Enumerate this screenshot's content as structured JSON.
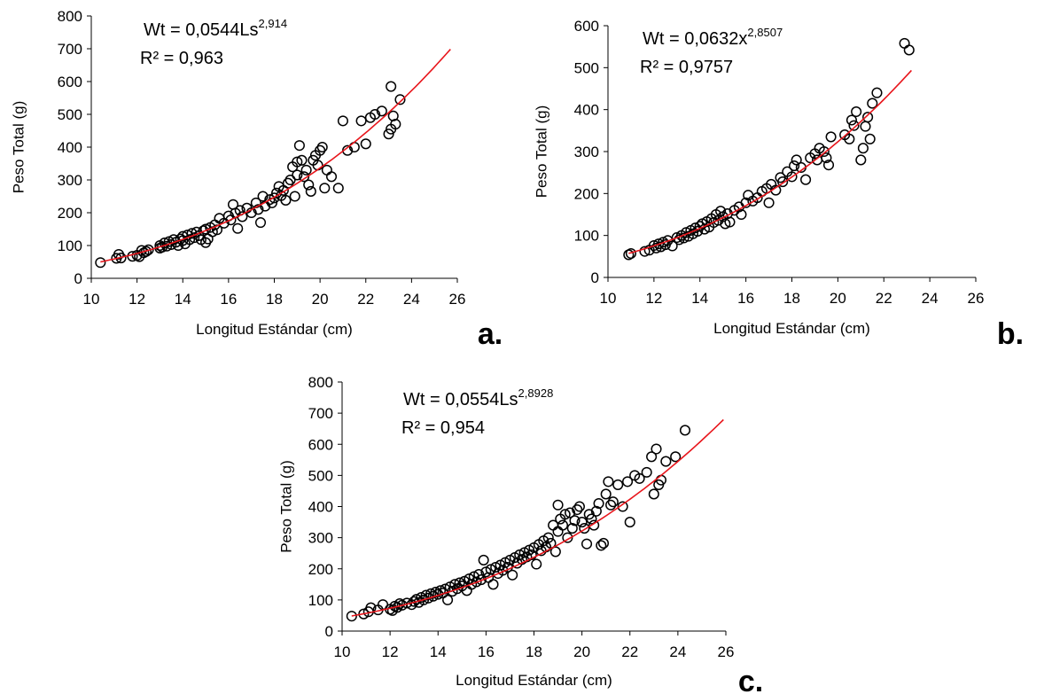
{
  "chart_data": [
    {
      "id": "a",
      "type": "scatter",
      "panel_label": "a.",
      "xlabel": "Longitud Estándar (cm)",
      "ylabel": "Peso Total (g)",
      "xlim": [
        10,
        26
      ],
      "ylim": [
        0,
        800
      ],
      "xticks": [
        10,
        12,
        14,
        16,
        18,
        20,
        22,
        24,
        26
      ],
      "yticks": [
        0,
        100,
        200,
        300,
        400,
        500,
        600,
        700,
        800
      ],
      "equation": {
        "prefix": "Wt = 0,0544Ls",
        "exponent": "2,914"
      },
      "r2": "R² = 0,963",
      "trendline": {
        "a": 0.0544,
        "b": 2.914,
        "x_range": [
          10.4,
          25.7
        ],
        "color": "#e8151b"
      },
      "points": [
        [
          10.4,
          48
        ],
        [
          11.1,
          61
        ],
        [
          11.2,
          73
        ],
        [
          11.3,
          62
        ],
        [
          11.8,
          67
        ],
        [
          12.0,
          70
        ],
        [
          12.1,
          66
        ],
        [
          12.2,
          85
        ],
        [
          12.3,
          78
        ],
        [
          12.4,
          82
        ],
        [
          12.5,
          87
        ],
        [
          13.0,
          92
        ],
        [
          13.0,
          100
        ],
        [
          13.1,
          95
        ],
        [
          13.2,
          108
        ],
        [
          13.3,
          98
        ],
        [
          13.4,
          112
        ],
        [
          13.5,
          103
        ],
        [
          13.6,
          118
        ],
        [
          13.7,
          110
        ],
        [
          13.8,
          100
        ],
        [
          13.9,
          120
        ],
        [
          14.0,
          115
        ],
        [
          14.0,
          128
        ],
        [
          14.1,
          105
        ],
        [
          14.2,
          132
        ],
        [
          14.3,
          118
        ],
        [
          14.4,
          137
        ],
        [
          14.5,
          124
        ],
        [
          14.6,
          141
        ],
        [
          14.7,
          130
        ],
        [
          14.8,
          118
        ],
        [
          14.9,
          145
        ],
        [
          15.0,
          150
        ],
        [
          15.0,
          109
        ],
        [
          15.1,
          120
        ],
        [
          15.2,
          155
        ],
        [
          15.3,
          142
        ],
        [
          15.4,
          163
        ],
        [
          15.5,
          148
        ],
        [
          15.6,
          183
        ],
        [
          15.8,
          168
        ],
        [
          16.0,
          190
        ],
        [
          16.1,
          178
        ],
        [
          16.2,
          225
        ],
        [
          16.3,
          199
        ],
        [
          16.4,
          152
        ],
        [
          16.5,
          207
        ],
        [
          16.6,
          188
        ],
        [
          16.8,
          214
        ],
        [
          17.0,
          200
        ],
        [
          17.2,
          230
        ],
        [
          17.3,
          210
        ],
        [
          17.4,
          170
        ],
        [
          17.5,
          250
        ],
        [
          17.6,
          220
        ],
        [
          17.8,
          240
        ],
        [
          17.9,
          230
        ],
        [
          18.0,
          245
        ],
        [
          18.1,
          260
        ],
        [
          18.2,
          280
        ],
        [
          18.3,
          252
        ],
        [
          18.4,
          268
        ],
        [
          18.5,
          238
        ],
        [
          18.6,
          290
        ],
        [
          18.7,
          300
        ],
        [
          18.8,
          340
        ],
        [
          18.9,
          250
        ],
        [
          19.0,
          315
        ],
        [
          19.0,
          355
        ],
        [
          19.1,
          405
        ],
        [
          19.2,
          360
        ],
        [
          19.3,
          310
        ],
        [
          19.4,
          330
        ],
        [
          19.5,
          285
        ],
        [
          19.6,
          265
        ],
        [
          19.7,
          360
        ],
        [
          19.8,
          375
        ],
        [
          19.9,
          345
        ],
        [
          20.0,
          390
        ],
        [
          20.1,
          400
        ],
        [
          20.2,
          275
        ],
        [
          20.3,
          330
        ],
        [
          20.5,
          310
        ],
        [
          20.8,
          275
        ],
        [
          21.0,
          480
        ],
        [
          21.2,
          390
        ],
        [
          21.5,
          400
        ],
        [
          21.8,
          480
        ],
        [
          22.0,
          410
        ],
        [
          22.2,
          490
        ],
        [
          22.4,
          500
        ],
        [
          22.7,
          510
        ],
        [
          23.0,
          440
        ],
        [
          23.1,
          585
        ],
        [
          23.1,
          455
        ],
        [
          23.2,
          495
        ],
        [
          23.3,
          470
        ],
        [
          23.5,
          545
        ]
      ]
    },
    {
      "id": "b",
      "type": "scatter",
      "panel_label": "b.",
      "xlabel": "Longitud Estándar (cm)",
      "ylabel": "Peso Total (g)",
      "xlim": [
        10,
        26
      ],
      "ylim": [
        0,
        600
      ],
      "xticks": [
        10,
        12,
        14,
        16,
        18,
        20,
        22,
        24,
        26
      ],
      "yticks": [
        0,
        100,
        200,
        300,
        400,
        500,
        600
      ],
      "equation": {
        "prefix": "Wt = 0,0632x",
        "exponent": "2,8507"
      },
      "r2": "R² = 0,9757",
      "trendline": {
        "a": 0.0632,
        "b": 2.8507,
        "x_range": [
          10.9,
          23.2
        ],
        "color": "#e8151b"
      },
      "points": [
        [
          10.9,
          54
        ],
        [
          11.0,
          57
        ],
        [
          11.6,
          62
        ],
        [
          11.8,
          65
        ],
        [
          12.0,
          76
        ],
        [
          12.1,
          70
        ],
        [
          12.2,
          80
        ],
        [
          12.3,
          73
        ],
        [
          12.4,
          84
        ],
        [
          12.5,
          78
        ],
        [
          12.6,
          88
        ],
        [
          12.8,
          75
        ],
        [
          13.0,
          95
        ],
        [
          13.1,
          90
        ],
        [
          13.2,
          100
        ],
        [
          13.3,
          94
        ],
        [
          13.4,
          107
        ],
        [
          13.5,
          98
        ],
        [
          13.6,
          112
        ],
        [
          13.7,
          104
        ],
        [
          13.8,
          118
        ],
        [
          13.9,
          110
        ],
        [
          14.0,
          122
        ],
        [
          14.1,
          128
        ],
        [
          14.2,
          115
        ],
        [
          14.3,
          133
        ],
        [
          14.4,
          120
        ],
        [
          14.5,
          140
        ],
        [
          14.6,
          131
        ],
        [
          14.7,
          150
        ],
        [
          14.8,
          136
        ],
        [
          14.9,
          158
        ],
        [
          15.0,
          145
        ],
        [
          15.1,
          128
        ],
        [
          15.2,
          152
        ],
        [
          15.3,
          132
        ],
        [
          15.5,
          160
        ],
        [
          15.7,
          168
        ],
        [
          15.8,
          150
        ],
        [
          16.0,
          178
        ],
        [
          16.1,
          196
        ],
        [
          16.3,
          182
        ],
        [
          16.5,
          190
        ],
        [
          16.7,
          205
        ],
        [
          16.9,
          212
        ],
        [
          17.0,
          178
        ],
        [
          17.1,
          222
        ],
        [
          17.3,
          208
        ],
        [
          17.5,
          238
        ],
        [
          17.6,
          228
        ],
        [
          17.8,
          252
        ],
        [
          18.0,
          240
        ],
        [
          18.1,
          266
        ],
        [
          18.2,
          280
        ],
        [
          18.4,
          262
        ],
        [
          18.6,
          233
        ],
        [
          18.8,
          285
        ],
        [
          19.0,
          295
        ],
        [
          19.1,
          280
        ],
        [
          19.2,
          308
        ],
        [
          19.4,
          300
        ],
        [
          19.5,
          285
        ],
        [
          19.6,
          268
        ],
        [
          19.7,
          335
        ],
        [
          20.3,
          340
        ],
        [
          20.5,
          330
        ],
        [
          20.6,
          375
        ],
        [
          20.7,
          362
        ],
        [
          20.8,
          395
        ],
        [
          21.0,
          280
        ],
        [
          21.1,
          308
        ],
        [
          21.2,
          360
        ],
        [
          21.3,
          382
        ],
        [
          21.4,
          330
        ],
        [
          21.5,
          415
        ],
        [
          21.7,
          440
        ],
        [
          22.9,
          558
        ],
        [
          23.1,
          542
        ]
      ]
    },
    {
      "id": "c",
      "type": "scatter",
      "panel_label": "c.",
      "xlabel": "Longitud Estándar (cm)",
      "ylabel": "Peso Total (g)",
      "xlim": [
        10,
        26
      ],
      "ylim": [
        0,
        800
      ],
      "xticks": [
        10,
        12,
        14,
        16,
        18,
        20,
        22,
        24,
        26
      ],
      "yticks": [
        0,
        100,
        200,
        300,
        400,
        500,
        600,
        700,
        800
      ],
      "equation": {
        "prefix": "Wt = 0,0554Ls",
        "exponent": "2,8928"
      },
      "r2": "R² = 0,954",
      "trendline": {
        "a": 0.0554,
        "b": 2.8928,
        "x_range": [
          10.4,
          25.9
        ],
        "color": "#e8151b"
      },
      "points": [
        [
          10.4,
          48
        ],
        [
          10.9,
          55
        ],
        [
          11.1,
          62
        ],
        [
          11.2,
          75
        ],
        [
          11.5,
          68
        ],
        [
          11.7,
          85
        ],
        [
          12.0,
          70
        ],
        [
          12.1,
          66
        ],
        [
          12.2,
          80
        ],
        [
          12.3,
          76
        ],
        [
          12.4,
          88
        ],
        [
          12.5,
          83
        ],
        [
          12.7,
          90
        ],
        [
          12.9,
          85
        ],
        [
          13.0,
          95
        ],
        [
          13.1,
          102
        ],
        [
          13.2,
          92
        ],
        [
          13.3,
          108
        ],
        [
          13.4,
          100
        ],
        [
          13.5,
          115
        ],
        [
          13.6,
          106
        ],
        [
          13.7,
          120
        ],
        [
          13.8,
          112
        ],
        [
          13.9,
          125
        ],
        [
          14.0,
          118
        ],
        [
          14.1,
          130
        ],
        [
          14.2,
          122
        ],
        [
          14.3,
          135
        ],
        [
          14.4,
          100
        ],
        [
          14.5,
          142
        ],
        [
          14.6,
          128
        ],
        [
          14.7,
          150
        ],
        [
          14.8,
          136
        ],
        [
          14.9,
          155
        ],
        [
          15.0,
          145
        ],
        [
          15.1,
          160
        ],
        [
          15.2,
          130
        ],
        [
          15.3,
          168
        ],
        [
          15.4,
          150
        ],
        [
          15.5,
          175
        ],
        [
          15.6,
          158
        ],
        [
          15.7,
          182
        ],
        [
          15.8,
          165
        ],
        [
          15.9,
          228
        ],
        [
          16.0,
          190
        ],
        [
          16.1,
          172
        ],
        [
          16.2,
          198
        ],
        [
          16.3,
          150
        ],
        [
          16.4,
          205
        ],
        [
          16.5,
          185
        ],
        [
          16.6,
          212
        ],
        [
          16.7,
          195
        ],
        [
          16.8,
          220
        ],
        [
          16.9,
          205
        ],
        [
          17.0,
          228
        ],
        [
          17.1,
          180
        ],
        [
          17.2,
          236
        ],
        [
          17.3,
          218
        ],
        [
          17.4,
          245
        ],
        [
          17.5,
          230
        ],
        [
          17.6,
          252
        ],
        [
          17.7,
          238
        ],
        [
          17.8,
          260
        ],
        [
          17.9,
          245
        ],
        [
          18.0,
          268
        ],
        [
          18.1,
          215
        ],
        [
          18.2,
          278
        ],
        [
          18.3,
          258
        ],
        [
          18.4,
          290
        ],
        [
          18.5,
          270
        ],
        [
          18.6,
          300
        ],
        [
          18.7,
          282
        ],
        [
          18.8,
          340
        ],
        [
          18.9,
          255
        ],
        [
          19.0,
          320
        ],
        [
          19.0,
          405
        ],
        [
          19.1,
          360
        ],
        [
          19.2,
          340
        ],
        [
          19.3,
          375
        ],
        [
          19.4,
          300
        ],
        [
          19.5,
          380
        ],
        [
          19.6,
          330
        ],
        [
          19.7,
          355
        ],
        [
          19.8,
          390
        ],
        [
          19.9,
          400
        ],
        [
          20.0,
          350
        ],
        [
          20.1,
          330
        ],
        [
          20.2,
          280
        ],
        [
          20.3,
          375
        ],
        [
          20.4,
          360
        ],
        [
          20.5,
          340
        ],
        [
          20.6,
          385
        ],
        [
          20.7,
          410
        ],
        [
          20.8,
          275
        ],
        [
          20.9,
          282
        ],
        [
          21.0,
          440
        ],
        [
          21.1,
          480
        ],
        [
          21.2,
          405
        ],
        [
          21.3,
          415
        ],
        [
          21.5,
          470
        ],
        [
          21.7,
          400
        ],
        [
          21.9,
          480
        ],
        [
          22.0,
          350
        ],
        [
          22.2,
          500
        ],
        [
          22.4,
          490
        ],
        [
          22.7,
          510
        ],
        [
          22.9,
          560
        ],
        [
          23.0,
          440
        ],
        [
          23.1,
          585
        ],
        [
          23.2,
          470
        ],
        [
          23.3,
          485
        ],
        [
          23.5,
          545
        ],
        [
          23.9,
          560
        ],
        [
          24.3,
          645
        ]
      ]
    }
  ]
}
